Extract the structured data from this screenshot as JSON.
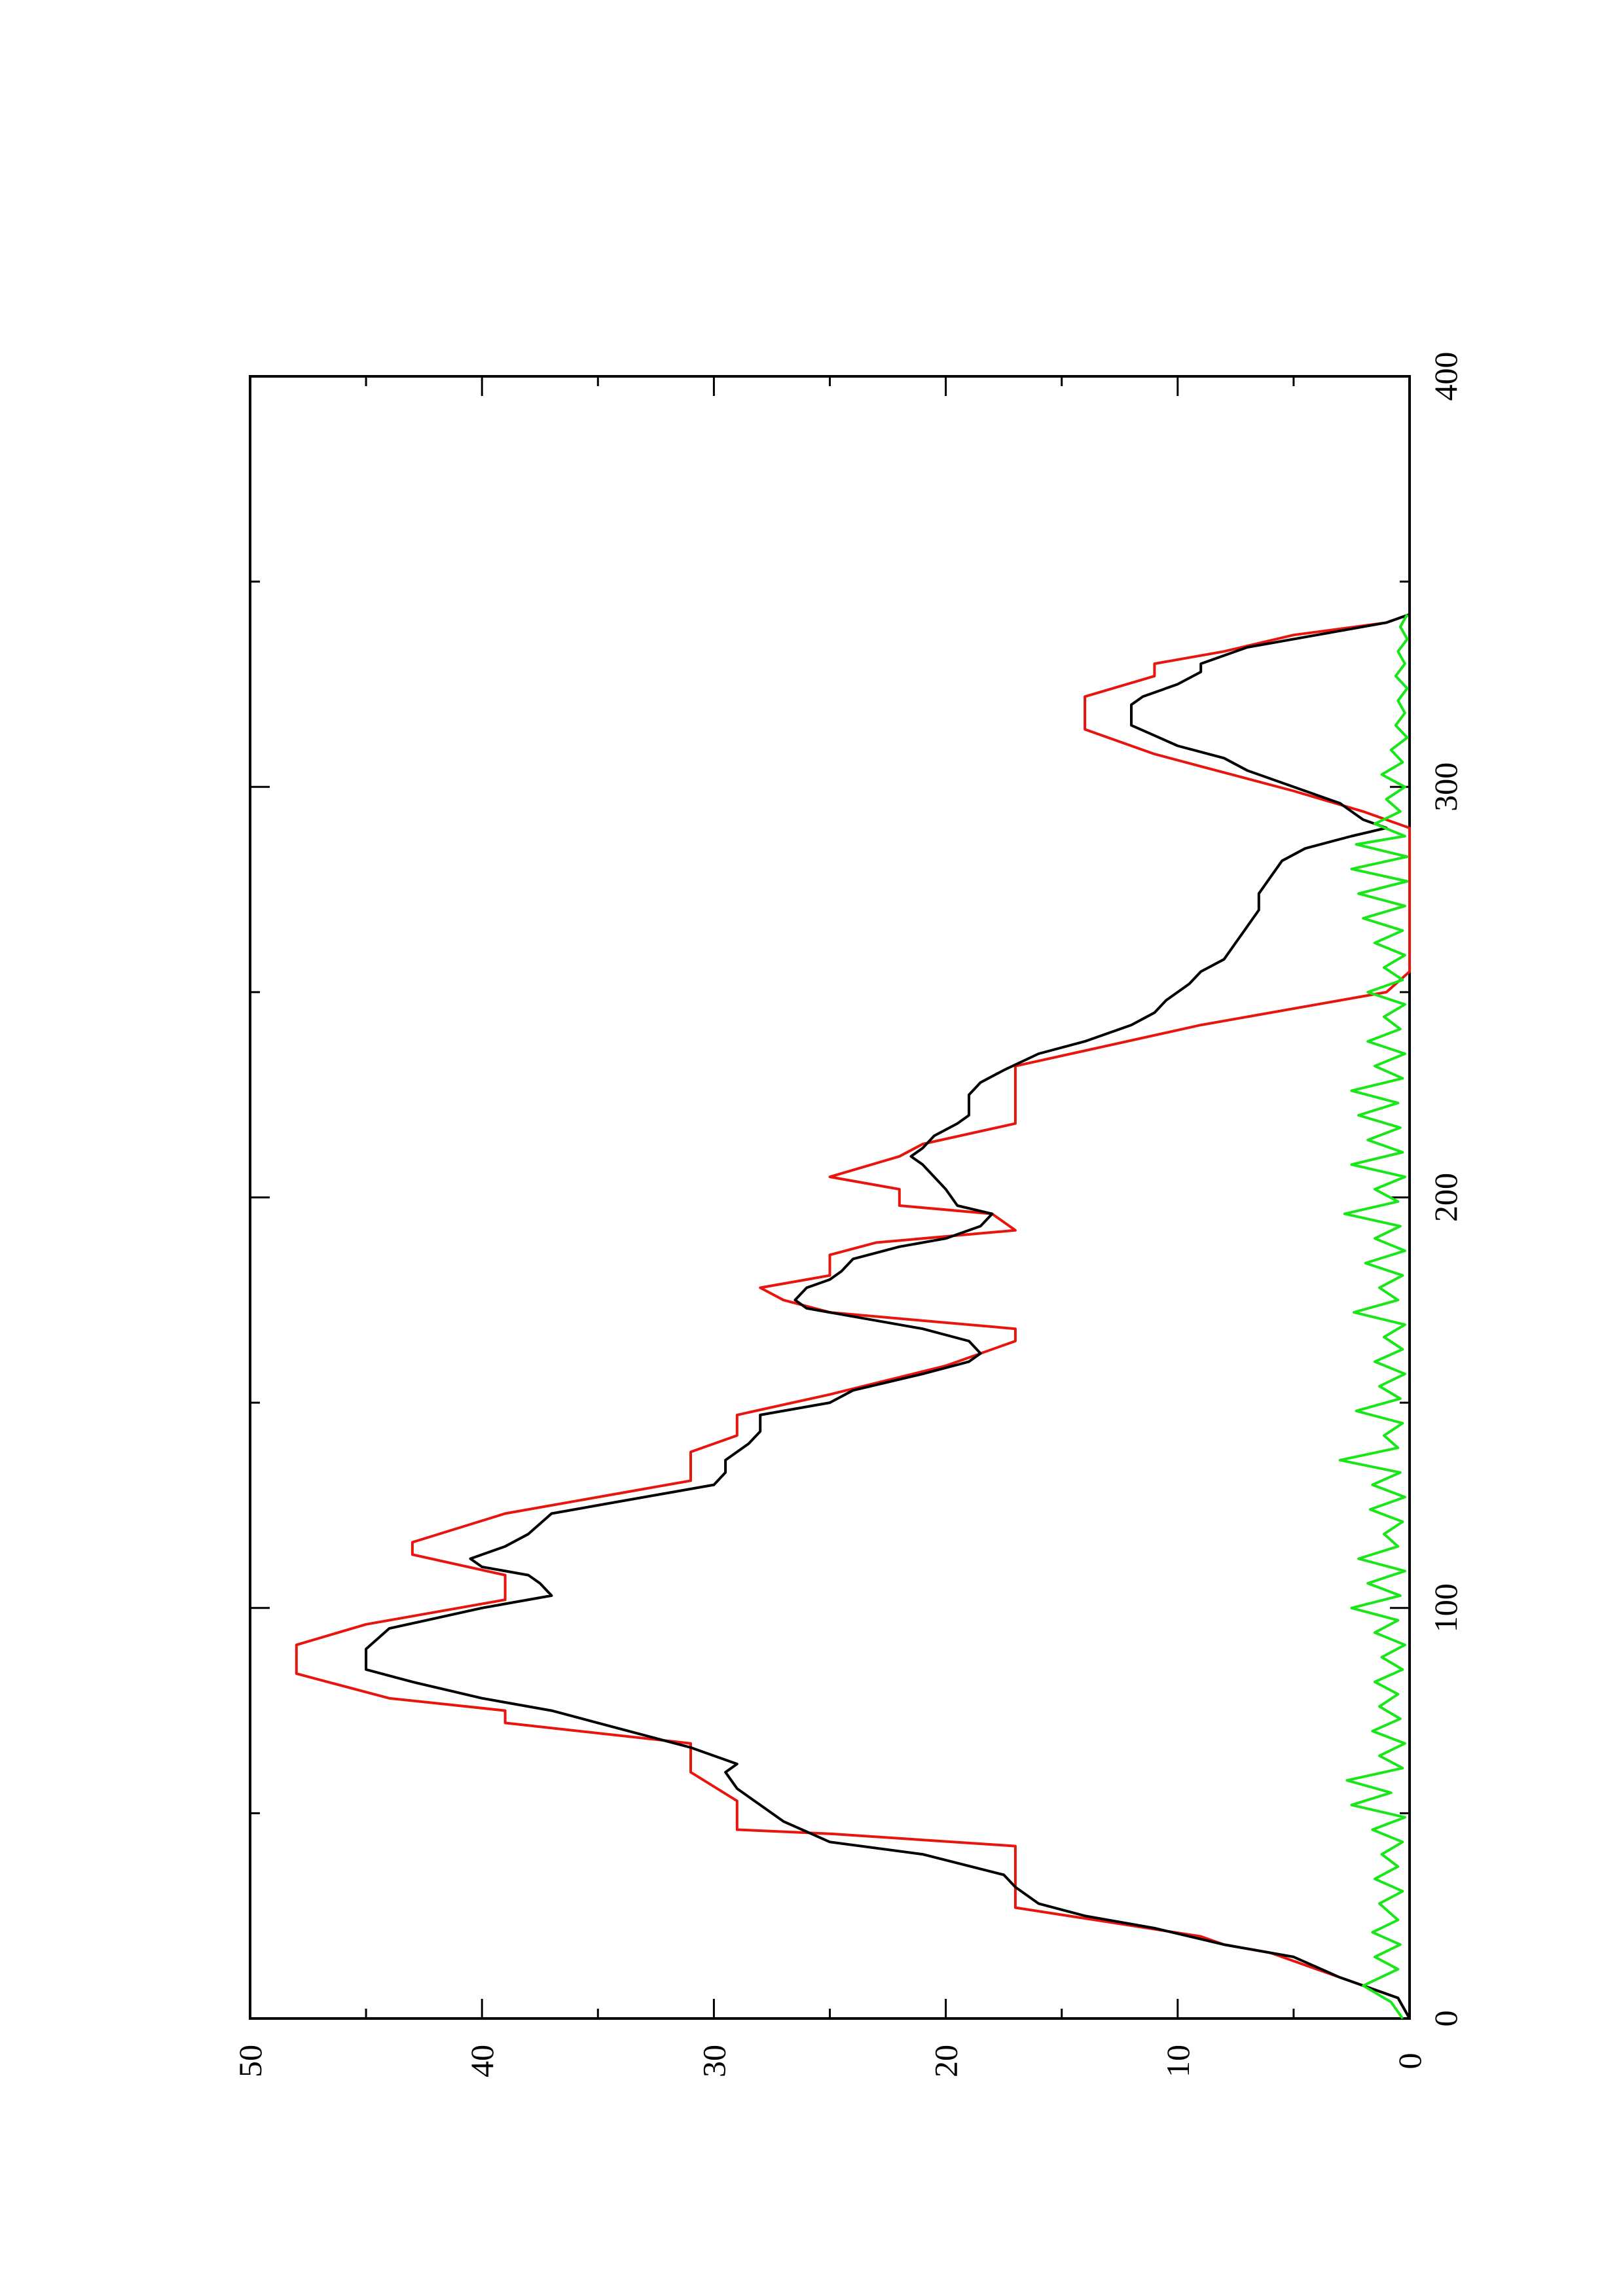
{
  "colors": {
    "background": "#ffffff",
    "axis": "#000000",
    "series_black": "#000000",
    "series_red": "#e8150f",
    "series_green": "#19e619"
  },
  "chart_data": {
    "type": "line",
    "orientation": "rotated 90° counter-clockwise (x axis runs up the page, y axis runs right-to-left)",
    "title": "",
    "xlabel": "",
    "ylabel": "",
    "xlim": [
      0,
      400
    ],
    "ylim": [
      0,
      50
    ],
    "grid": false,
    "legend": "none",
    "x_ticks": [
      0,
      100,
      200,
      300,
      400
    ],
    "x_minor_ticks": [
      50,
      150,
      250,
      350
    ],
    "y_ticks": [
      0,
      10,
      20,
      30,
      40,
      50
    ],
    "y_minor_ticks": [
      5,
      15,
      25,
      35,
      45
    ],
    "series": [
      {
        "color": "#e8150f",
        "style": "step",
        "points": [
          [
            0,
            0
          ],
          [
            5,
            0.5
          ],
          [
            8,
            2
          ],
          [
            10,
            3
          ],
          [
            12,
            4
          ],
          [
            16,
            6
          ],
          [
            18,
            8
          ],
          [
            20,
            9
          ],
          [
            27,
            17
          ],
          [
            42,
            17
          ],
          [
            45,
            25
          ],
          [
            46,
            29
          ],
          [
            53,
            29
          ],
          [
            60,
            31
          ],
          [
            67,
            31
          ],
          [
            72,
            39
          ],
          [
            75,
            39
          ],
          [
            78,
            44
          ],
          [
            84,
            48
          ],
          [
            86,
            48
          ],
          [
            91,
            48
          ],
          [
            96,
            45
          ],
          [
            98,
            43
          ],
          [
            102,
            39
          ],
          [
            108,
            39
          ],
          [
            113,
            43
          ],
          [
            116,
            43
          ],
          [
            123,
            39
          ],
          [
            128,
            34
          ],
          [
            131,
            31
          ],
          [
            138,
            31
          ],
          [
            142,
            29
          ],
          [
            147,
            29
          ],
          [
            152,
            25
          ],
          [
            159,
            20
          ],
          [
            165,
            17
          ],
          [
            168,
            17
          ],
          [
            170,
            21
          ],
          [
            172,
            25
          ],
          [
            175,
            27
          ],
          [
            178,
            28
          ],
          [
            180,
            26
          ],
          [
            181,
            25
          ],
          [
            186,
            25
          ],
          [
            189,
            23
          ],
          [
            192,
            17
          ],
          [
            196,
            18
          ],
          [
            198,
            22
          ],
          [
            202,
            22
          ],
          [
            205,
            25
          ],
          [
            210,
            22
          ],
          [
            213,
            21
          ],
          [
            218,
            17
          ],
          [
            232,
            17
          ],
          [
            242,
            9
          ],
          [
            250,
            1
          ],
          [
            255,
            0
          ],
          [
            290,
            0
          ],
          [
            291,
            0.5
          ],
          [
            294,
            2
          ],
          [
            299,
            5
          ],
          [
            305,
            9
          ],
          [
            308,
            11
          ],
          [
            314,
            14
          ],
          [
            322,
            14
          ],
          [
            327,
            11
          ],
          [
            330,
            11
          ],
          [
            333,
            8
          ],
          [
            337,
            5
          ],
          [
            340,
            1
          ],
          [
            342,
            0
          ]
        ]
      },
      {
        "color": "#000000",
        "style": "line",
        "points": [
          [
            0,
            0
          ],
          [
            5,
            0.5
          ],
          [
            10,
            3
          ],
          [
            15,
            5
          ],
          [
            18,
            8
          ],
          [
            22,
            11
          ],
          [
            25,
            14
          ],
          [
            28,
            16
          ],
          [
            32,
            17
          ],
          [
            35,
            17.5
          ],
          [
            40,
            21
          ],
          [
            43,
            25
          ],
          [
            48,
            27
          ],
          [
            52,
            28
          ],
          [
            56,
            29
          ],
          [
            60,
            29.5
          ],
          [
            62,
            29
          ],
          [
            66,
            31
          ],
          [
            72,
            35
          ],
          [
            75,
            37
          ],
          [
            78,
            40
          ],
          [
            82,
            43
          ],
          [
            85,
            45
          ],
          [
            90,
            45
          ],
          [
            95,
            44
          ],
          [
            100,
            40
          ],
          [
            103,
            37
          ],
          [
            106,
            37.5
          ],
          [
            108,
            38
          ],
          [
            110,
            40
          ],
          [
            112,
            40.5
          ],
          [
            115,
            39
          ],
          [
            118,
            38
          ],
          [
            123,
            37
          ],
          [
            125,
            35
          ],
          [
            128,
            32
          ],
          [
            130,
            30
          ],
          [
            133,
            29.5
          ],
          [
            136,
            29.5
          ],
          [
            140,
            28.5
          ],
          [
            143,
            28
          ],
          [
            147,
            28
          ],
          [
            150,
            25
          ],
          [
            153,
            24
          ],
          [
            157,
            21
          ],
          [
            160,
            19
          ],
          [
            162,
            18.5
          ],
          [
            165,
            19
          ],
          [
            168,
            21
          ],
          [
            170,
            23
          ],
          [
            173,
            26
          ],
          [
            175,
            26.5
          ],
          [
            178,
            26
          ],
          [
            180,
            25
          ],
          [
            182,
            24.5
          ],
          [
            185,
            24
          ],
          [
            188,
            22
          ],
          [
            190,
            20
          ],
          [
            193,
            18.5
          ],
          [
            196,
            18
          ],
          [
            198,
            19.5
          ],
          [
            202,
            20
          ],
          [
            205,
            20.5
          ],
          [
            208,
            21
          ],
          [
            210,
            21.5
          ],
          [
            212,
            21
          ],
          [
            215,
            20.5
          ],
          [
            218,
            19.5
          ],
          [
            220,
            19
          ],
          [
            225,
            19
          ],
          [
            228,
            18.5
          ],
          [
            231,
            17.5
          ],
          [
            235,
            16
          ],
          [
            238,
            14
          ],
          [
            242,
            12
          ],
          [
            245,
            11
          ],
          [
            248,
            10.5
          ],
          [
            252,
            9.5
          ],
          [
            255,
            9
          ],
          [
            258,
            8
          ],
          [
            262,
            7.5
          ],
          [
            266,
            7
          ],
          [
            270,
            6.5
          ],
          [
            274,
            6.5
          ],
          [
            278,
            6
          ],
          [
            282,
            5.5
          ],
          [
            285,
            4.5
          ],
          [
            288,
            2.5
          ],
          [
            290,
            1
          ],
          [
            292,
            2
          ],
          [
            294,
            2.5
          ],
          [
            296,
            3
          ],
          [
            299,
            4.5
          ],
          [
            304,
            7
          ],
          [
            307,
            8
          ],
          [
            310,
            10
          ],
          [
            315,
            12
          ],
          [
            320,
            12
          ],
          [
            322,
            11.5
          ],
          [
            325,
            10
          ],
          [
            328,
            9
          ],
          [
            330,
            9
          ],
          [
            334,
            7
          ],
          [
            337,
            4
          ],
          [
            340,
            1
          ],
          [
            342,
            0
          ]
        ]
      },
      {
        "color": "#19e619",
        "style": "line",
        "points": [
          [
            0,
            0.3
          ],
          [
            4,
            0.8
          ],
          [
            8,
            2
          ],
          [
            12,
            0.5
          ],
          [
            15,
            1.5
          ],
          [
            18,
            0.4
          ],
          [
            21,
            1.6
          ],
          [
            24,
            0.5
          ],
          [
            28,
            1.3
          ],
          [
            31,
            0.3
          ],
          [
            34,
            1.5
          ],
          [
            37,
            0.5
          ],
          [
            40,
            1.2
          ],
          [
            43,
            0.3
          ],
          [
            46,
            1.6
          ],
          [
            49,
            0.2
          ],
          [
            52,
            2.5
          ],
          [
            55,
            0.8
          ],
          [
            58,
            2.7
          ],
          [
            61,
            0.3
          ],
          [
            64,
            1.3
          ],
          [
            67,
            0.2
          ],
          [
            70,
            1.6
          ],
          [
            73,
            0.4
          ],
          [
            76,
            1.3
          ],
          [
            79,
            0.5
          ],
          [
            82,
            1.5
          ],
          [
            85,
            0.3
          ],
          [
            88,
            1.2
          ],
          [
            91,
            0.2
          ],
          [
            94,
            1.5
          ],
          [
            97,
            0.5
          ],
          [
            100,
            2.5
          ],
          [
            103,
            0.4
          ],
          [
            106,
            1.8
          ],
          [
            109,
            0.2
          ],
          [
            112,
            2.2
          ],
          [
            115,
            0.5
          ],
          [
            118,
            1.1
          ],
          [
            121,
            0.3
          ],
          [
            124,
            1.7
          ],
          [
            127,
            0.2
          ],
          [
            130,
            1.6
          ],
          [
            133,
            0.4
          ],
          [
            136,
            3
          ],
          [
            139,
            0.5
          ],
          [
            142,
            1.1
          ],
          [
            145,
            0.3
          ],
          [
            148,
            2.3
          ],
          [
            151,
            0.4
          ],
          [
            154,
            1.3
          ],
          [
            157,
            0.2
          ],
          [
            160,
            1.5
          ],
          [
            163,
            0.3
          ],
          [
            166,
            1.1
          ],
          [
            169,
            0.2
          ],
          [
            172,
            2.4
          ],
          [
            175,
            0.5
          ],
          [
            178,
            1.3
          ],
          [
            181,
            0.3
          ],
          [
            184,
            1.9
          ],
          [
            187,
            0.2
          ],
          [
            190,
            1.5
          ],
          [
            193,
            0.4
          ],
          [
            196,
            2.8
          ],
          [
            199,
            0.5
          ],
          [
            202,
            1.5
          ],
          [
            205,
            0.2
          ],
          [
            208,
            2.5
          ],
          [
            211,
            0.3
          ],
          [
            214,
            1.8
          ],
          [
            217,
            0.4
          ],
          [
            220,
            2.2
          ],
          [
            223,
            0.5
          ],
          [
            226,
            2.5
          ],
          [
            229,
            0.3
          ],
          [
            232,
            1.5
          ],
          [
            235,
            0.2
          ],
          [
            238,
            1.8
          ],
          [
            241,
            0.4
          ],
          [
            244,
            1.1
          ],
          [
            247,
            0.2
          ],
          [
            250,
            1.8
          ],
          [
            253,
            0.3
          ],
          [
            256,
            1.1
          ],
          [
            259,
            0.2
          ],
          [
            262,
            1.5
          ],
          [
            265,
            0.3
          ],
          [
            268,
            2
          ],
          [
            271,
            0.2
          ],
          [
            274,
            2.2
          ],
          [
            277,
            0.1
          ],
          [
            280,
            2.5
          ],
          [
            283,
            0.1
          ],
          [
            286,
            2.3
          ],
          [
            288,
            0.2
          ],
          [
            291,
            1.5
          ],
          [
            294,
            0.4
          ],
          [
            297,
            1
          ],
          [
            300,
            0.2
          ],
          [
            303,
            1.2
          ],
          [
            306,
            0.3
          ],
          [
            309,
            0.8
          ],
          [
            312,
            0.1
          ],
          [
            315,
            0.6
          ],
          [
            318,
            0.2
          ],
          [
            321,
            0.5
          ],
          [
            324,
            0.1
          ],
          [
            327,
            0.6
          ],
          [
            330,
            0.2
          ],
          [
            333,
            0.5
          ],
          [
            336,
            0.1
          ],
          [
            339,
            0.4
          ],
          [
            342,
            0.1
          ]
        ]
      }
    ]
  }
}
